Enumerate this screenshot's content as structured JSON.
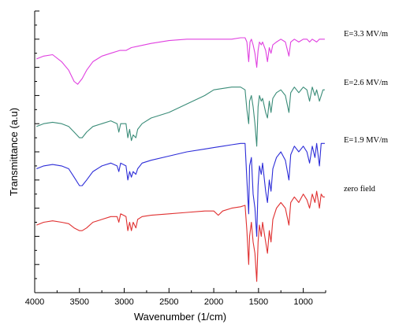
{
  "chart_data": {
    "type": "line",
    "xlabel": "Wavenumber (1/cm)",
    "ylabel": "Transmittance (a.u)",
    "xlim": [
      4000,
      750
    ],
    "ylim": [
      0,
      100
    ],
    "x_ticks": [
      "4000",
      "3500",
      "3000",
      "2500",
      "2000",
      "1500",
      "1000"
    ],
    "x_tick_values": [
      4000,
      3500,
      3000,
      2500,
      2000,
      1500,
      1000
    ],
    "y_ticks_labeled": false,
    "grid": false,
    "legend": "inline labels at right",
    "series": [
      {
        "name": "E=3.3 MV/m",
        "color": "#e040e0",
        "points": [
          [
            3980,
            83
          ],
          [
            3900,
            84
          ],
          [
            3800,
            84.5
          ],
          [
            3700,
            82
          ],
          [
            3620,
            79
          ],
          [
            3560,
            75
          ],
          [
            3520,
            74
          ],
          [
            3470,
            76
          ],
          [
            3420,
            79
          ],
          [
            3350,
            82
          ],
          [
            3250,
            84
          ],
          [
            3150,
            85
          ],
          [
            3050,
            86
          ],
          [
            2980,
            86
          ],
          [
            2920,
            87
          ],
          [
            2850,
            87.5
          ],
          [
            2700,
            88.5
          ],
          [
            2500,
            89.5
          ],
          [
            2300,
            90
          ],
          [
            2100,
            90
          ],
          [
            1900,
            90
          ],
          [
            1800,
            90
          ],
          [
            1700,
            90.5
          ],
          [
            1650,
            90.5
          ],
          [
            1630,
            89
          ],
          [
            1610,
            82
          ],
          [
            1595,
            89
          ],
          [
            1580,
            90
          ],
          [
            1560,
            88
          ],
          [
            1540,
            85
          ],
          [
            1520,
            80
          ],
          [
            1505,
            86
          ],
          [
            1490,
            89
          ],
          [
            1470,
            88
          ],
          [
            1455,
            89
          ],
          [
            1420,
            86
          ],
          [
            1400,
            82
          ],
          [
            1380,
            87
          ],
          [
            1360,
            85
          ],
          [
            1340,
            88
          ],
          [
            1300,
            89
          ],
          [
            1250,
            90
          ],
          [
            1200,
            89
          ],
          [
            1160,
            84
          ],
          [
            1140,
            89
          ],
          [
            1100,
            90
          ],
          [
            1050,
            89
          ],
          [
            1000,
            90
          ],
          [
            960,
            90
          ],
          [
            930,
            89
          ],
          [
            900,
            90
          ],
          [
            850,
            89
          ],
          [
            820,
            90
          ],
          [
            780,
            90
          ],
          [
            760,
            90
          ]
        ]
      },
      {
        "name": "E=2.6 MV/m",
        "color": "#3a8c78",
        "points": [
          [
            3980,
            59
          ],
          [
            3900,
            60
          ],
          [
            3800,
            60.5
          ],
          [
            3700,
            60
          ],
          [
            3620,
            59
          ],
          [
            3560,
            57
          ],
          [
            3500,
            55
          ],
          [
            3470,
            55
          ],
          [
            3420,
            57
          ],
          [
            3350,
            59
          ],
          [
            3250,
            60
          ],
          [
            3150,
            61
          ],
          [
            3080,
            60
          ],
          [
            3060,
            57
          ],
          [
            3040,
            60
          ],
          [
            2980,
            60
          ],
          [
            2960,
            55
          ],
          [
            2940,
            58
          ],
          [
            2920,
            54
          ],
          [
            2900,
            56
          ],
          [
            2870,
            55
          ],
          [
            2850,
            58
          ],
          [
            2800,
            60
          ],
          [
            2700,
            62
          ],
          [
            2500,
            64
          ],
          [
            2300,
            67
          ],
          [
            2100,
            70
          ],
          [
            2000,
            72
          ],
          [
            1900,
            72.5
          ],
          [
            1800,
            73
          ],
          [
            1700,
            73
          ],
          [
            1650,
            72
          ],
          [
            1630,
            65
          ],
          [
            1610,
            60
          ],
          [
            1600,
            68
          ],
          [
            1580,
            70
          ],
          [
            1560,
            66
          ],
          [
            1540,
            60
          ],
          [
            1520,
            52
          ],
          [
            1505,
            66
          ],
          [
            1490,
            70
          ],
          [
            1470,
            68
          ],
          [
            1455,
            69
          ],
          [
            1420,
            64
          ],
          [
            1400,
            62
          ],
          [
            1380,
            68
          ],
          [
            1360,
            64
          ],
          [
            1340,
            69
          ],
          [
            1300,
            71
          ],
          [
            1250,
            72
          ],
          [
            1200,
            70
          ],
          [
            1160,
            64
          ],
          [
            1140,
            71
          ],
          [
            1100,
            73
          ],
          [
            1050,
            71
          ],
          [
            1000,
            73
          ],
          [
            960,
            72
          ],
          [
            930,
            68
          ],
          [
            900,
            73
          ],
          [
            870,
            70
          ],
          [
            850,
            72
          ],
          [
            820,
            68
          ],
          [
            780,
            72
          ],
          [
            760,
            72
          ]
        ]
      },
      {
        "name": "E=1.9 MV/m",
        "color": "#2c2cd8",
        "points": [
          [
            3980,
            44
          ],
          [
            3900,
            45
          ],
          [
            3800,
            45.5
          ],
          [
            3700,
            45
          ],
          [
            3620,
            44
          ],
          [
            3560,
            41
          ],
          [
            3500,
            38
          ],
          [
            3470,
            38
          ],
          [
            3420,
            40
          ],
          [
            3350,
            43
          ],
          [
            3250,
            45
          ],
          [
            3150,
            46
          ],
          [
            3080,
            45
          ],
          [
            3060,
            43
          ],
          [
            3040,
            46
          ],
          [
            2980,
            45
          ],
          [
            2960,
            40
          ],
          [
            2940,
            43
          ],
          [
            2920,
            41
          ],
          [
            2900,
            43
          ],
          [
            2870,
            42
          ],
          [
            2850,
            44
          ],
          [
            2800,
            46
          ],
          [
            2700,
            47
          ],
          [
            2500,
            48.5
          ],
          [
            2300,
            50
          ],
          [
            2100,
            51
          ],
          [
            2000,
            51.5
          ],
          [
            1900,
            52
          ],
          [
            1800,
            52.5
          ],
          [
            1700,
            53
          ],
          [
            1650,
            53
          ],
          [
            1630,
            40
          ],
          [
            1610,
            28
          ],
          [
            1600,
            45
          ],
          [
            1580,
            48
          ],
          [
            1560,
            35
          ],
          [
            1540,
            30
          ],
          [
            1520,
            20
          ],
          [
            1505,
            38
          ],
          [
            1490,
            45
          ],
          [
            1470,
            42
          ],
          [
            1455,
            46
          ],
          [
            1420,
            36
          ],
          [
            1400,
            32
          ],
          [
            1380,
            40
          ],
          [
            1360,
            36
          ],
          [
            1340,
            44
          ],
          [
            1300,
            48
          ],
          [
            1250,
            50
          ],
          [
            1200,
            47
          ],
          [
            1160,
            40
          ],
          [
            1140,
            49
          ],
          [
            1100,
            52
          ],
          [
            1050,
            50
          ],
          [
            1000,
            52
          ],
          [
            960,
            50
          ],
          [
            930,
            46
          ],
          [
            900,
            52
          ],
          [
            870,
            48
          ],
          [
            850,
            53
          ],
          [
            820,
            45
          ],
          [
            800,
            53
          ],
          [
            780,
            53
          ],
          [
            760,
            53
          ]
        ]
      },
      {
        "name": "zero field",
        "color": "#e03030",
        "points": [
          [
            3980,
            24
          ],
          [
            3900,
            25
          ],
          [
            3800,
            25.5
          ],
          [
            3700,
            25
          ],
          [
            3620,
            24.5
          ],
          [
            3560,
            23
          ],
          [
            3500,
            22
          ],
          [
            3470,
            22
          ],
          [
            3420,
            23
          ],
          [
            3350,
            25
          ],
          [
            3250,
            26
          ],
          [
            3150,
            27
          ],
          [
            3080,
            27
          ],
          [
            3060,
            25
          ],
          [
            3040,
            28
          ],
          [
            2980,
            27
          ],
          [
            2960,
            22
          ],
          [
            2940,
            25
          ],
          [
            2920,
            22
          ],
          [
            2900,
            25
          ],
          [
            2870,
            23
          ],
          [
            2850,
            26
          ],
          [
            2800,
            27
          ],
          [
            2700,
            27.5
          ],
          [
            2500,
            28
          ],
          [
            2300,
            28.5
          ],
          [
            2100,
            29
          ],
          [
            2000,
            29
          ],
          [
            1950,
            27.5
          ],
          [
            1900,
            29
          ],
          [
            1800,
            30
          ],
          [
            1700,
            30.5
          ],
          [
            1650,
            31
          ],
          [
            1630,
            22
          ],
          [
            1610,
            10
          ],
          [
            1600,
            20
          ],
          [
            1580,
            25
          ],
          [
            1560,
            18
          ],
          [
            1540,
            14
          ],
          [
            1520,
            4
          ],
          [
            1505,
            18
          ],
          [
            1490,
            24
          ],
          [
            1470,
            20
          ],
          [
            1455,
            25
          ],
          [
            1420,
            18
          ],
          [
            1400,
            14
          ],
          [
            1380,
            22
          ],
          [
            1360,
            18
          ],
          [
            1340,
            26
          ],
          [
            1300,
            30
          ],
          [
            1250,
            32
          ],
          [
            1200,
            30
          ],
          [
            1160,
            24
          ],
          [
            1140,
            32
          ],
          [
            1100,
            34
          ],
          [
            1050,
            32
          ],
          [
            1000,
            35
          ],
          [
            960,
            33
          ],
          [
            930,
            30
          ],
          [
            900,
            35
          ],
          [
            870,
            32
          ],
          [
            850,
            36
          ],
          [
            820,
            30
          ],
          [
            800,
            35
          ],
          [
            780,
            34
          ],
          [
            760,
            34
          ]
        ]
      }
    ]
  }
}
